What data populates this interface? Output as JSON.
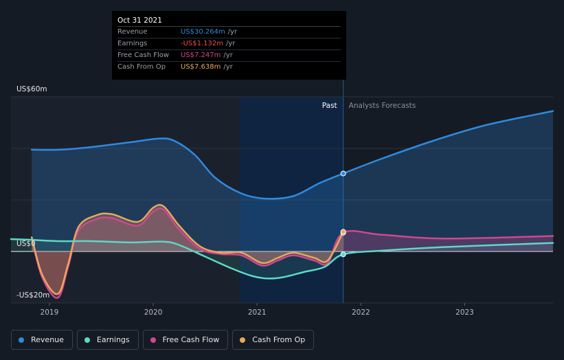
{
  "tooltip": {
    "date": "Oct 31 2021",
    "rows": [
      {
        "label": "Revenue",
        "value": "US$30.264m",
        "unit": "/yr",
        "color": "#2f8ae0"
      },
      {
        "label": "Earnings",
        "value": "-US$1.132m",
        "unit": "/yr",
        "color": "#ea4f4f"
      },
      {
        "label": "Free Cash Flow",
        "value": "US$7.247m",
        "unit": "/yr",
        "color": "#d1478f"
      },
      {
        "label": "Cash From Op",
        "value": "US$7.638m",
        "unit": "/yr",
        "color": "#e8a85c"
      }
    ]
  },
  "legend": [
    {
      "label": "Revenue",
      "color": "#2f8ae0"
    },
    {
      "label": "Earnings",
      "color": "#5dd9c7"
    },
    {
      "label": "Free Cash Flow",
      "color": "#d1478f"
    },
    {
      "label": "Cash From Op",
      "color": "#e8a85c"
    }
  ],
  "chart_data": {
    "type": "line",
    "y_tick_labels": [
      "US$60m",
      "US$0",
      "-US$20m"
    ],
    "ylim": [
      -20,
      60
    ],
    "x_tick_labels": [
      "2019",
      "2020",
      "2021",
      "2022",
      "2023"
    ],
    "xlim": [
      2018.63,
      2023.85
    ],
    "region_labels": {
      "past": "Past",
      "forecast": "Analysts Forecasts"
    },
    "past_end": 2021.83,
    "highlight_start": 2020.83,
    "grid": true,
    "series": [
      {
        "name": "Revenue",
        "color": "#2f8ae0",
        "x": [
          2018.83,
          2019.1,
          2019.4,
          2019.8,
          2020.05,
          2020.2,
          2020.4,
          2020.6,
          2020.85,
          2021.08,
          2021.35,
          2021.6,
          2021.83,
          2022.2,
          2022.7,
          2023.2,
          2023.85
        ],
        "y": [
          39.5,
          39.5,
          40.5,
          42.5,
          43.8,
          43,
          37.5,
          28.5,
          22.5,
          20.5,
          21.5,
          26.5,
          30.264,
          36,
          43,
          49,
          54.5
        ]
      },
      {
        "name": "Earnings",
        "color": "#5dd9c7",
        "x": [
          2018.63,
          2018.83,
          2019.1,
          2019.4,
          2019.8,
          2020.1,
          2020.25,
          2020.5,
          2020.75,
          2020.95,
          2021.1,
          2021.25,
          2021.45,
          2021.65,
          2021.83,
          2022.2,
          2022.8,
          2023.85
        ],
        "y": [
          4.8,
          4.5,
          4,
          4,
          3.5,
          3.8,
          2.5,
          -2,
          -6.5,
          -9.5,
          -10.5,
          -10,
          -8,
          -6,
          -1.132,
          0.3,
          1.7,
          3.3
        ]
      },
      {
        "name": "Free Cash Flow",
        "color": "#d1478f",
        "x": [
          2018.83,
          2018.93,
          2019.08,
          2019.18,
          2019.28,
          2019.45,
          2019.6,
          2019.85,
          2020.0,
          2020.1,
          2020.25,
          2020.45,
          2020.65,
          2020.85,
          2021.05,
          2021.2,
          2021.35,
          2021.55,
          2021.68,
          2021.83,
          2022.2,
          2022.8,
          2023.85
        ],
        "y": [
          5,
          -10,
          -18,
          -6,
          8,
          12.5,
          13,
          10,
          15.5,
          16.2,
          8.5,
          1,
          -1,
          -1.5,
          -5.5,
          -3.5,
          -1.5,
          -3.5,
          -4.5,
          7.247,
          6.5,
          5,
          6
        ]
      },
      {
        "name": "Cash From Op",
        "color": "#e8a85c",
        "x": [
          2018.83,
          2018.93,
          2019.08,
          2019.18,
          2019.28,
          2019.45,
          2019.6,
          2019.85,
          2020.0,
          2020.1,
          2020.25,
          2020.45,
          2020.65,
          2020.85,
          2021.05,
          2021.2,
          2021.35,
          2021.55,
          2021.68,
          2021.83
        ],
        "y": [
          5.5,
          -9,
          -16.5,
          -5,
          9.5,
          14,
          14.5,
          11.5,
          17,
          17.5,
          10,
          2,
          -0.5,
          -0.5,
          -4.5,
          -2.5,
          -0.5,
          -2.5,
          -3.5,
          7.638
        ]
      }
    ]
  }
}
